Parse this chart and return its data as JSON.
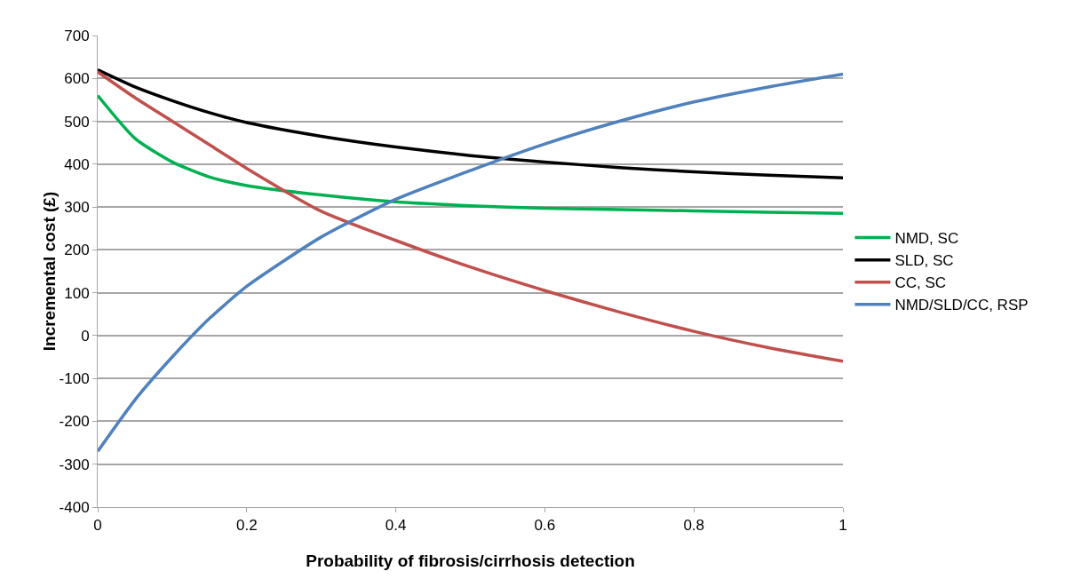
{
  "chart_data": {
    "type": "line",
    "xlabel": "Probability of fibrosis/cirrhosis detection",
    "ylabel": "Incremental cost (£)",
    "x": [
      0,
      0.05,
      0.1,
      0.15,
      0.2,
      0.3,
      0.4,
      0.5,
      0.6,
      0.7,
      0.8,
      0.9,
      1
    ],
    "series": [
      {
        "name": "NMD, SC",
        "color": "#00b050",
        "values": [
          560,
          460,
          405,
          370,
          350,
          328,
          312,
          303,
          297,
          294,
          291,
          288,
          285
        ]
      },
      {
        "name": "SLD, SC",
        "color": "#000000",
        "values": [
          620,
          580,
          548,
          520,
          497,
          465,
          440,
          420,
          405,
          392,
          382,
          374,
          368
        ]
      },
      {
        "name": "CC, SC",
        "color": "#c0504d",
        "values": [
          615,
          555,
          500,
          445,
          390,
          290,
          222,
          160,
          105,
          55,
          10,
          -28,
          -60
        ]
      },
      {
        "name": "NMD/SLD/CC, RSP",
        "color": "#4f81bd",
        "values": [
          -270,
          -150,
          -50,
          40,
          115,
          230,
          318,
          385,
          447,
          500,
          545,
          580,
          610
        ]
      }
    ],
    "xlim": [
      0,
      1
    ],
    "xticks": [
      0,
      0.2,
      0.4,
      0.6,
      0.8,
      1
    ],
    "ylim": [
      -400,
      700
    ],
    "yticks": [
      -400,
      -300,
      -200,
      -100,
      0,
      100,
      200,
      300,
      400,
      500,
      600,
      700
    ],
    "grid": "y",
    "legend": "right",
    "marker": "none",
    "line_style": "solid"
  }
}
